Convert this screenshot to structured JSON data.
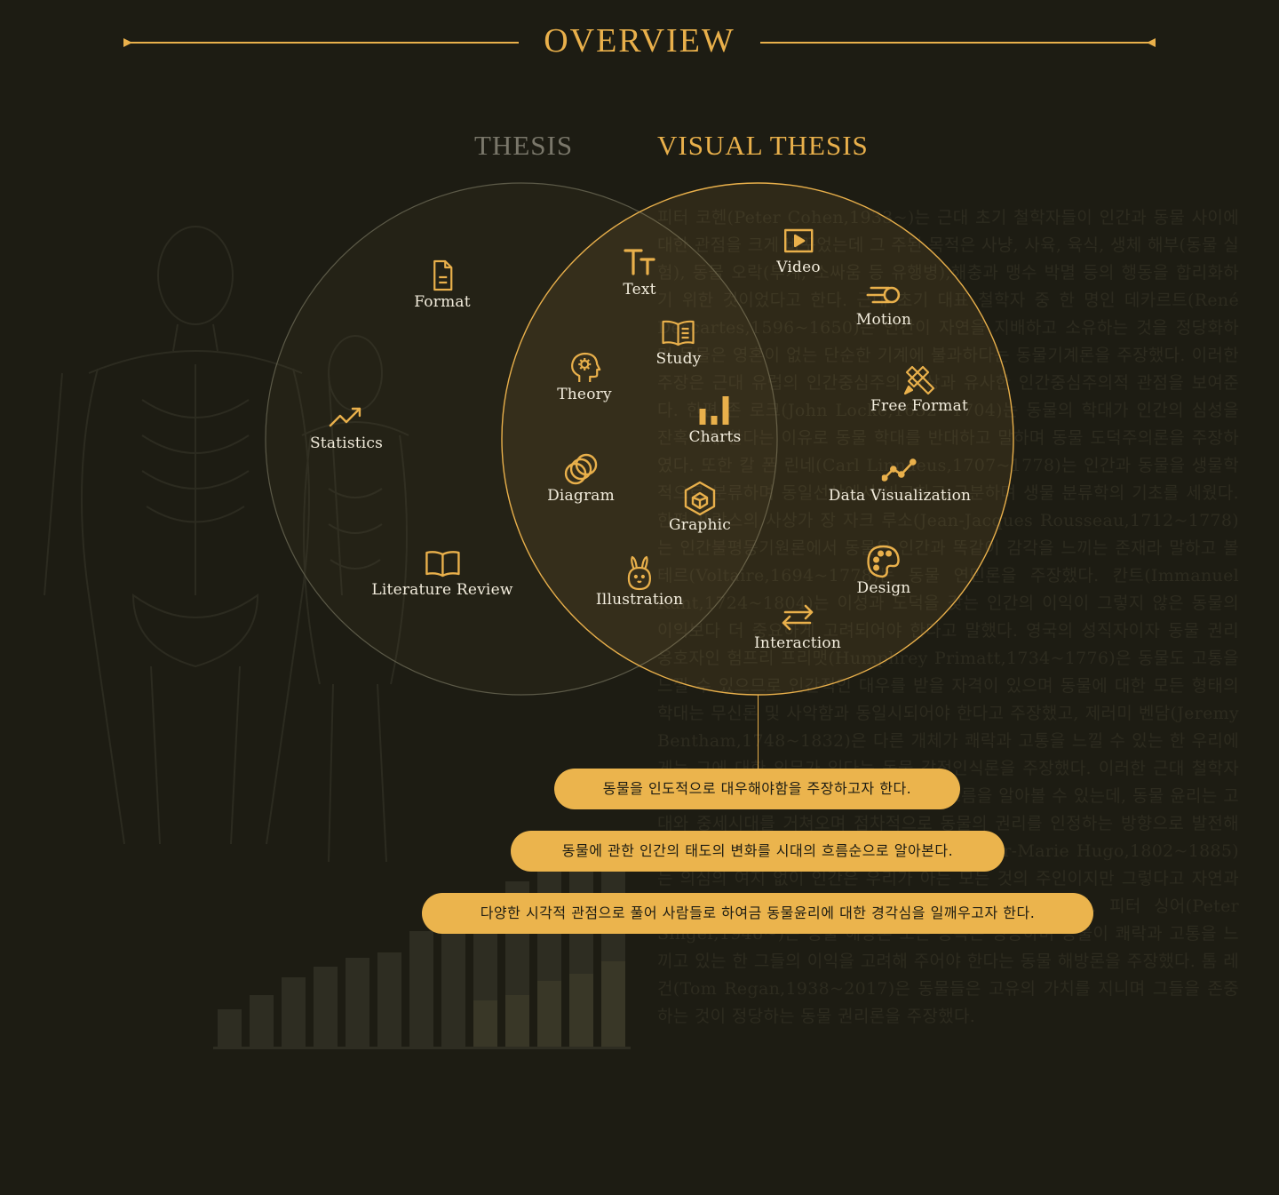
{
  "header": {
    "title": "OVERVIEW"
  },
  "sets": {
    "thesis": "THESIS",
    "visual": "VISUAL THESIS"
  },
  "items": {
    "format": "Format",
    "statistics": "Statistics",
    "literature_review": "Literature Review",
    "text": "Text",
    "study": "Study",
    "theory": "Theory",
    "charts": "Charts",
    "diagram": "Diagram",
    "graphic": "Graphic",
    "illustration": "Illustration",
    "video": "Video",
    "motion": "Motion",
    "free_format": "Free Format",
    "data_visualization": "Data Visualization",
    "design": "Design",
    "interaction": "Interaction"
  },
  "icons": {
    "format": "document-icon",
    "statistics": "trend-line-icon",
    "literature_review": "open-book-icon",
    "text": "text-size-icon",
    "study": "book-lines-icon",
    "theory": "head-gear-icon",
    "charts": "bar-chart-icon",
    "diagram": "overlapping-circles-icon",
    "graphic": "cube-icon",
    "illustration": "rabbit-icon",
    "video": "play-icon",
    "motion": "speed-circle-icon",
    "free_format": "pencil-ruler-icon",
    "data_visualization": "line-graph-icon",
    "design": "palette-icon",
    "interaction": "arrows-exchange-icon"
  },
  "goals": [
    "동물을 인도적으로 대우해야함을 주장하고자 한다.",
    "동물에 관한 인간의 태도의 변화를 시대의 흐름순으로 알아본다.",
    "다양한 시각적 관점으로 풀어 사람들로 하여금 동물윤리에 대한 경각심을 일깨우고자 한다."
  ],
  "background_text": "피터 코헨(Peter Cohen,1933~)는 근대 초기 철학자들이 인간과 동물 사이에 대한 관점을 크게 바꾸었는데 그 주된 목적은 사냥, 사육, 육식, 생체 해부(동물 실험), 동물 오락(투계, 소싸움 등 유행병),해충과 맹수 박멸 등의 행동을 합리화하기 위한 것이었다고 한다. 근대 초기 대표 철학자 중 한 명인 데카르트(René Descartes,1596~1650)는 인간이 자연을 지배하고 소유하는 것을 정당화하며 동물은 영혼이 없는 단순한 기계에 불과하다는 동물기계론을 주장했다. 이러한 주장은 근대 유럽의 인간중심주의 사상과 유사한 인간중심주의적 관점을 보여준다. 한편 존 로크(John Locke,1632~1704)는 동물의 학대가 인간의 심성을 잔혹하게 한다는 이유로 동물 학대를 반대하고 말하며 동물 도덕주의론을 주장하였다. 또한 칼 폰 린네(Carl Linnaeus,1707~1778)는 인간과 동물을 생물학적으로 분류하며 동일선상에서 비교하고 구분하며 생물 분류학의 기초를 세웠다. 한편 프랑스의 사상가 장 자크 루소(Jean-Jacques Rousseau,1712~1778)는 인간불평등기원론에서 동물은 인간과 똑같이 감각을 느끼는 존재라 말하고 볼테르(Voltaire,1694~1778)는 동물 연민론을 주장했다. 칸트(Immanuel Kant,1724~1804)는 이성과 도덕을 갖는 인간의 이익이 그렇지 않은 동물의 이익보다 더 중요하게 고려되어야 한다고 말했다. 영국의 성직자이자 동물 권리 옹호자인 험프리 프리맷(Humphrey Primatt,1734~1776)은 동물도 고통을 느낄 수 있으므로 인간적인 대우를 받을 자격이 있으며 동물에 대한 모든 형태의 학대는 무신론 및 사악함과 동일시되어야 한다고 주장했고, 제러미 벤담(Jeremy Bentham,1748~1832)은 다른 개체가 쾌락과 고통을 느낄 수 있는 한 우리에게는 그에 대한 의무가 있다는 동물 감정인식론을 주장했다. 이러한 근대 철학자들의 사상을 통해 근대의 동물윤리의 큰 흐름을 알아볼 수 있는데, 동물 윤리는 고대와 중세시대를 거쳐오며 점차적으로 동물의 권리를 인정하는 방향으로 발전해 왔다. 프랑스의 위대한 작가 빅토르 위고(Victor-Marie Hugo,1802~1885)는 의심의 여지 없이 인간은 우리가 아는 모든 것의 주인이지만 그렇다고 자연과의 관계에 대해 책임을 지지 않아도 되는 것은 아니다. 피터 싱어(Peter Singer,1946~)는 동물 해방론 모든 종족은 평등하며 동물이 쾌락과 고통을 느끼고 있는 한 그들의 이익을 고려해 주어야 한다는 동물 해방론을 주장했다. 톰 레건(Tom Regan,1938~2017)은 동물들은 고유의 가치를 지니며 그들을 존중하는 것이 정당하는 동물 권리론을 주장했다."
}
